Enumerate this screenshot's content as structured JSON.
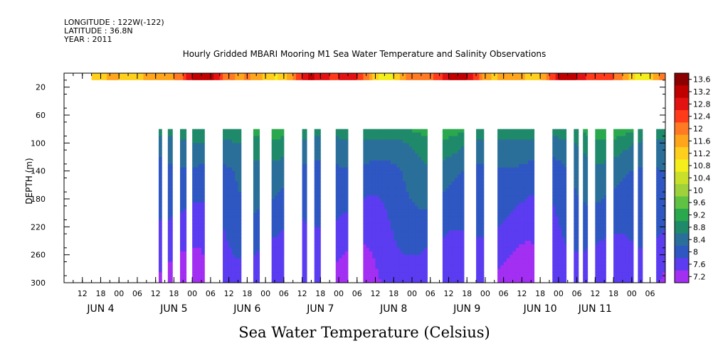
{
  "header": {
    "longitude": "LONGITUDE : 122W(-122)",
    "latitude": "LATITUDE : 36.8N",
    "year": "YEAR : 2011"
  },
  "chart_data": {
    "type": "heatmap",
    "title": "Hourly Gridded MBARI Mooring M1 Sea Water Temperature and Salinity Observations",
    "xlabel": "Sea Water Temperature (Celsius)",
    "ylabel": "DEPTH (m)",
    "xlim": [
      6,
      203
    ],
    "ylim": [
      300,
      0
    ],
    "grid": false,
    "hour_tick_labels": [
      "12",
      "18",
      "00",
      "06",
      "12",
      "18",
      "00",
      "06",
      "12",
      "18",
      "00",
      "06",
      "12",
      "18",
      "00",
      "06",
      "12",
      "18",
      "00",
      "06",
      "12",
      "18",
      "00",
      "06",
      "12",
      "18",
      "00",
      "06",
      "12",
      "18",
      "00",
      "06"
    ],
    "date_labels": [
      "JUN  4",
      "JUN  5",
      "JUN  6",
      "JUN  7",
      "JUN  8",
      "JUN  9",
      "JUN 10",
      "JUN 11"
    ],
    "date_label_hours": [
      18,
      42,
      66,
      90,
      114,
      138,
      162,
      180
    ],
    "y_ticks": [
      20,
      60,
      100,
      140,
      180,
      220,
      260,
      300
    ],
    "colorbar": {
      "labels": [
        "13.6",
        "13.2",
        "12.8",
        "12.4",
        "12",
        "11.6",
        "11.2",
        "10.8",
        "10.4",
        "10",
        "9.6",
        "9.2",
        "8.8",
        "8.4",
        "8",
        "7.6",
        "7.2"
      ],
      "colors": [
        "#8b0000",
        "#c00000",
        "#e21212",
        "#ff3b1a",
        "#ff7a22",
        "#ffa51c",
        "#ffcf1e",
        "#f3ee1c",
        "#c9e02a",
        "#9ed13a",
        "#5fc243",
        "#2aa84e",
        "#1f8a6a",
        "#2a6f9a",
        "#2f57c2",
        "#5b3cf0",
        "#a22ff2"
      ]
    },
    "surface_band": {
      "depth": [
        0,
        10
      ],
      "start_hour": 15,
      "end_hour": 203,
      "range_celsius": [
        10.8,
        13.6
      ]
    },
    "deep_data_segments_hours": [
      [
        37,
        38
      ],
      [
        40,
        41.5
      ],
      [
        44,
        46
      ],
      [
        48,
        52
      ],
      [
        58,
        64
      ],
      [
        68,
        70
      ],
      [
        74,
        78
      ],
      [
        84,
        85.5
      ],
      [
        88,
        90
      ],
      [
        95,
        99
      ],
      [
        104,
        125
      ],
      [
        130,
        137
      ],
      [
        141,
        143.5
      ],
      [
        148,
        160
      ],
      [
        166,
        170.5
      ],
      [
        173,
        174.5
      ],
      [
        176,
        177.5
      ],
      [
        180,
        183.5
      ],
      [
        186,
        192.5
      ],
      [
        194,
        195.5
      ],
      [
        200,
        214
      ]
    ],
    "deep_profile": {
      "depth": [
        80,
        100,
        140,
        180,
        220,
        260,
        300
      ],
      "temperature": [
        9.2,
        8.8,
        8.4,
        8.2,
        8.0,
        7.8,
        7.6
      ]
    }
  }
}
